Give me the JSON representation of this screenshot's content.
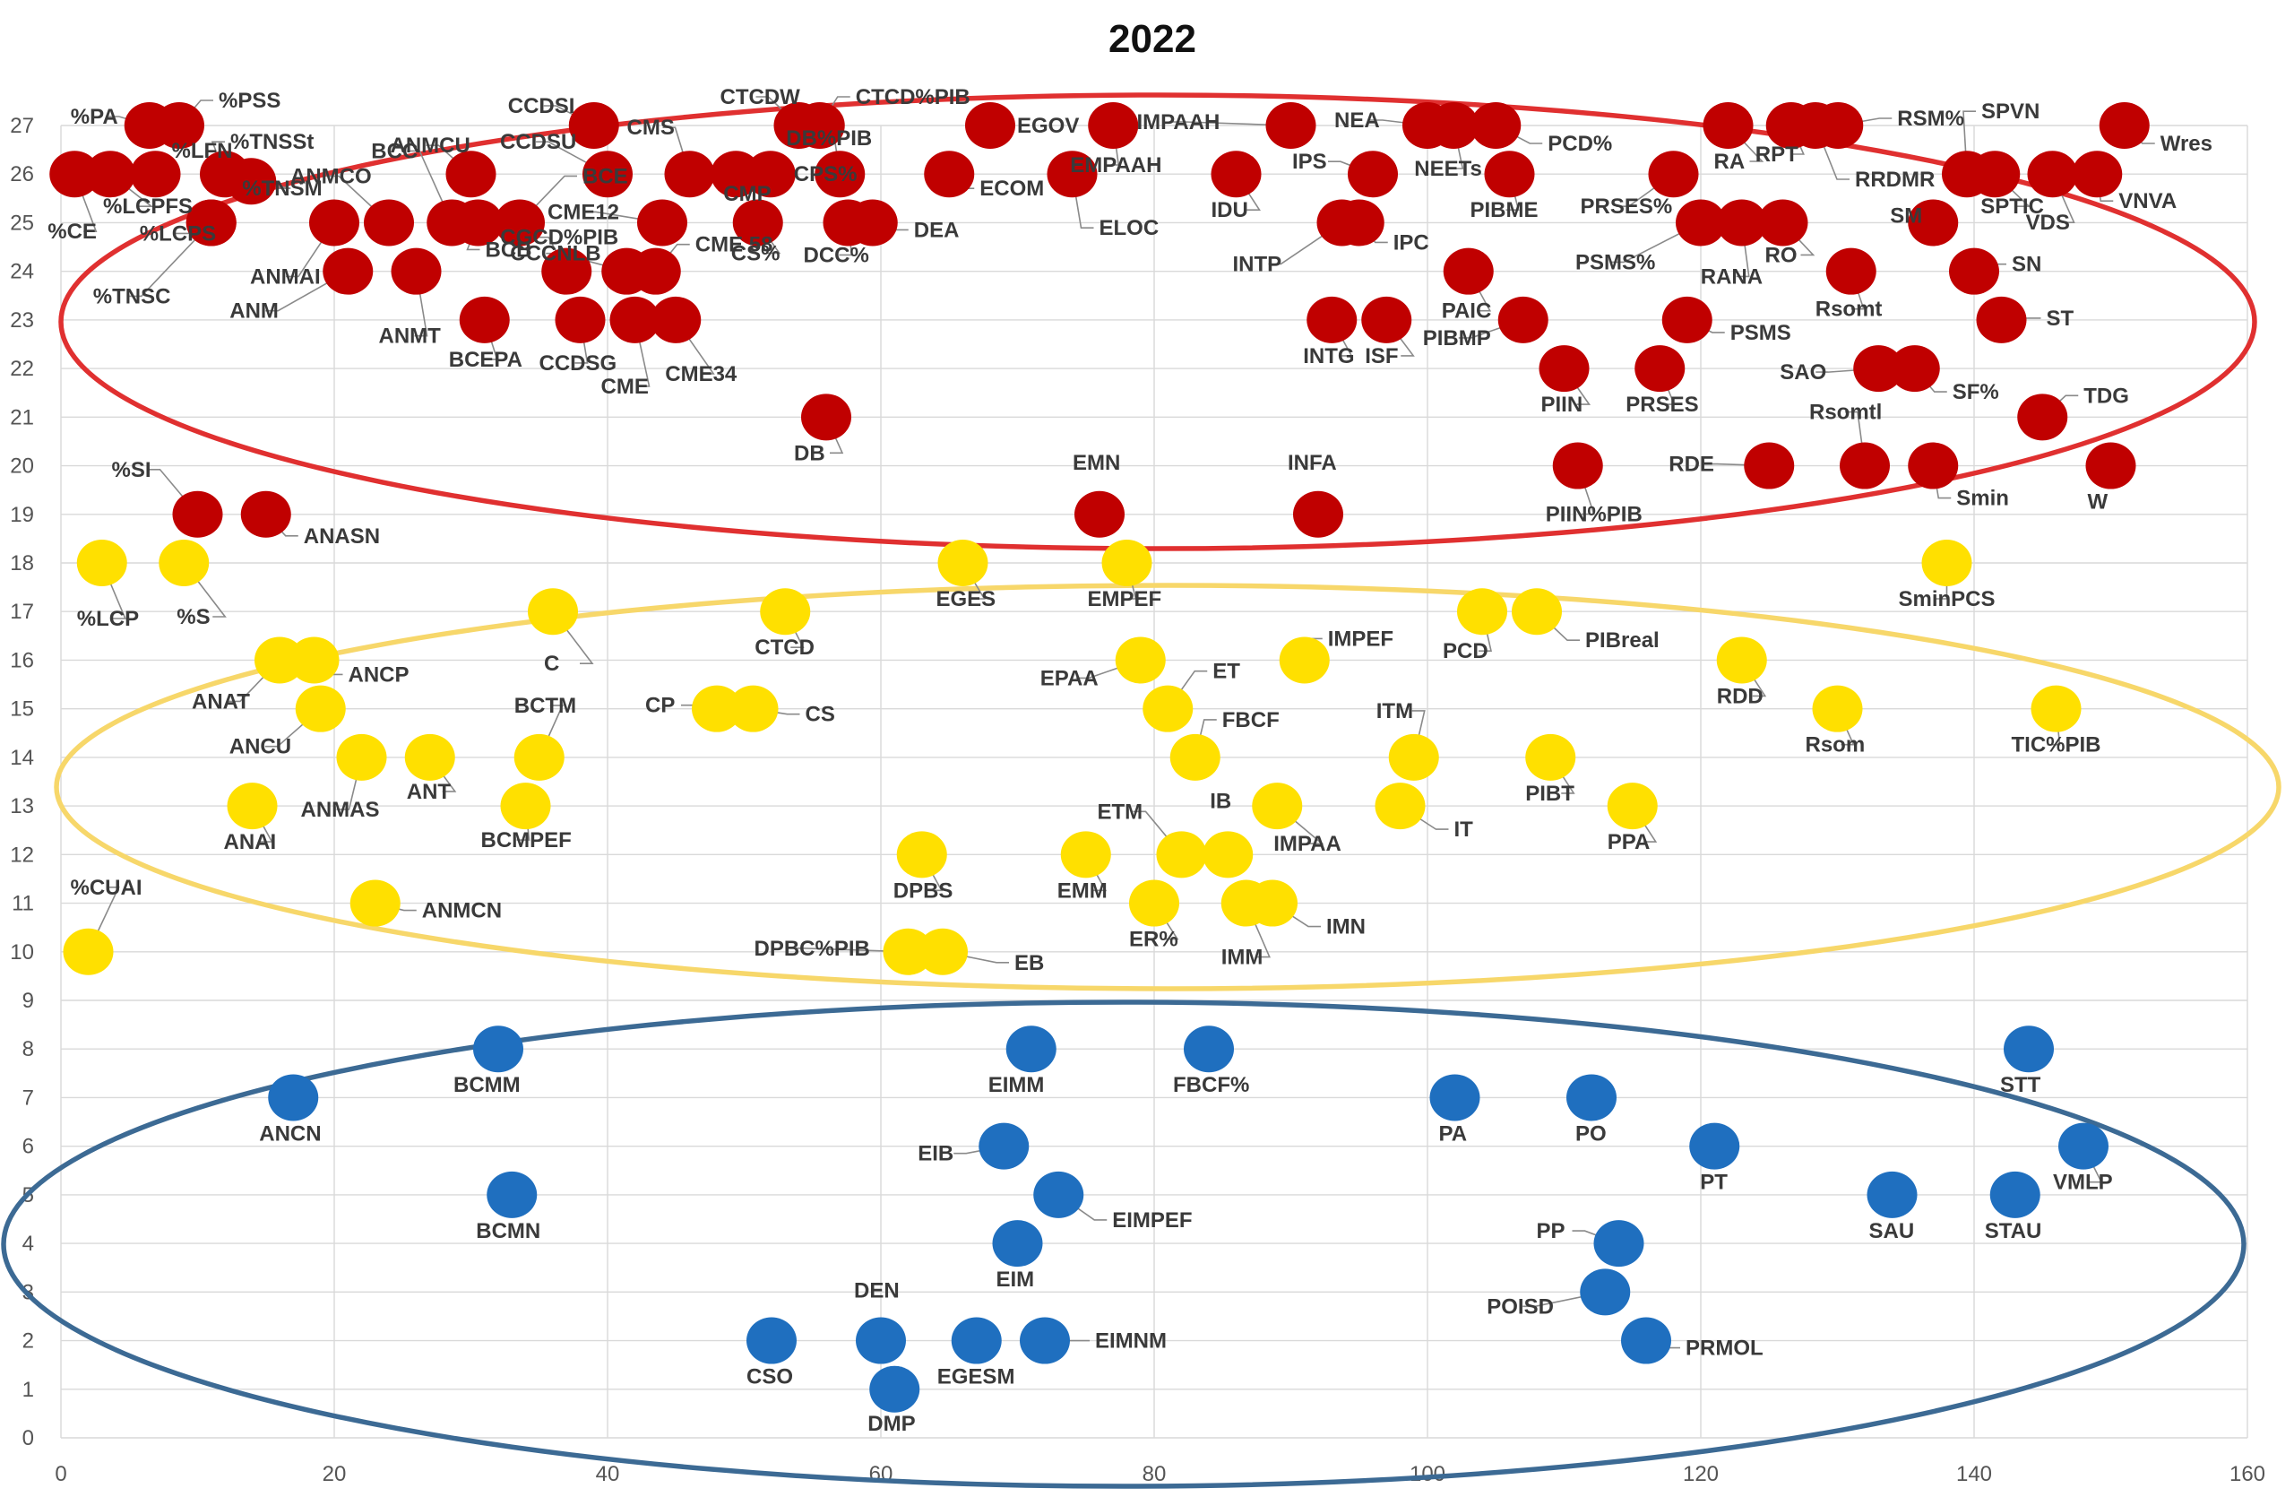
{
  "chart_data": {
    "type": "scatter",
    "title": "2022",
    "xlim": [
      0,
      160
    ],
    "ylim": [
      0,
      27
    ],
    "x_ticks": [
      "0",
      "20",
      "40",
      "60",
      "80",
      "100",
      "120",
      "140",
      "160"
    ],
    "y_ticks": [
      "0",
      "1",
      "2",
      "3",
      "4",
      "5",
      "6",
      "7",
      "8",
      "9",
      "10",
      "11",
      "12",
      "13",
      "14",
      "15",
      "16",
      "17",
      "18",
      "19",
      "20",
      "21",
      "22",
      "23",
      "24",
      "25",
      "26",
      "27"
    ],
    "grid": true,
    "legend": "none",
    "colors": {
      "red": "#c00000",
      "yellow": "#ffe000",
      "blue": "#1f6fbf",
      "red_ellipse": "#e03030",
      "yellow_ellipse": "#f7d76a",
      "blue_ellipse": "#3c6a94"
    },
    "groups": [
      {
        "color": "red",
        "points": [
          {
            "label": "%PA",
            "x": 7,
            "y": 27
          },
          {
            "label": "%PSS",
            "x": 8,
            "y": 27
          },
          {
            "label": "%LFN",
            "x": 6,
            "y": 26
          },
          {
            "label": "%LCPFS",
            "x": 4,
            "y": 26
          },
          {
            "label": "%CE",
            "x": 1,
            "y": 26
          },
          {
            "label": "%TNSSt",
            "x": 12,
            "y": 26
          },
          {
            "label": "%LCPS",
            "x": 11,
            "y": 25
          },
          {
            "label": "%TNSM",
            "x": 13,
            "y": 26
          },
          {
            "label": "%TNSC",
            "x": 11,
            "y": 25
          },
          {
            "label": "ANMCU",
            "x": 30,
            "y": 26
          },
          {
            "label": "ANMCO",
            "x": 24,
            "y": 25
          },
          {
            "label": "ANM",
            "x": 21,
            "y": 24
          },
          {
            "label": "ANMAI",
            "x": 20,
            "y": 25
          },
          {
            "label": "ANMT",
            "x": 26,
            "y": 24
          },
          {
            "label": "BCC",
            "x": 29,
            "y": 25
          },
          {
            "label": "BCB",
            "x": 30,
            "y": 25
          },
          {
            "label": "BCEPA",
            "x": 31,
            "y": 23
          },
          {
            "label": "BCE",
            "x": 32,
            "y": 25
          },
          {
            "label": "CCDSI",
            "x": 39,
            "y": 27
          },
          {
            "label": "CCDSU",
            "x": 40,
            "y": 26
          },
          {
            "label": "CGCD%PIB",
            "x": 37,
            "y": 24
          },
          {
            "label": "CCCNLB",
            "x": 41,
            "y": 24
          },
          {
            "label": "CCDSG",
            "x": 38,
            "y": 23
          },
          {
            "label": "CME",
            "x": 42,
            "y": 23
          },
          {
            "label": "CME12",
            "x": 44,
            "y": 25
          },
          {
            "label": "CMS",
            "x": 46,
            "y": 26
          },
          {
            "label": "CMP",
            "x": 49,
            "y": 26
          },
          {
            "label": "CPS%",
            "x": 51,
            "y": 26
          },
          {
            "label": "CME 58",
            "x": 43,
            "y": 24
          },
          {
            "label": "CME34",
            "x": 45,
            "y": 23
          },
          {
            "label": "CS%",
            "x": 51,
            "y": 25
          },
          {
            "label": "CTCDW",
            "x": 54,
            "y": 27
          },
          {
            "label": "CTCD%PIB",
            "x": 55,
            "y": 27
          },
          {
            "label": "DB%PIB",
            "x": 57,
            "y": 26
          },
          {
            "label": "DCC%",
            "x": 58,
            "y": 25
          },
          {
            "label": "DEA",
            "x": 59,
            "y": 25
          },
          {
            "label": "DB",
            "x": 56,
            "y": 21
          },
          {
            "label": "EGOV",
            "x": 68,
            "y": 27
          },
          {
            "label": "ECOM",
            "x": 65,
            "y": 26
          },
          {
            "label": "EMPAAH",
            "x": 77,
            "y": 27
          },
          {
            "label": "ELOC",
            "x": 74,
            "y": 26
          },
          {
            "label": "EMN",
            "x": 76,
            "y": 19
          },
          {
            "label": "IMPAAH",
            "x": 90,
            "y": 27
          },
          {
            "label": "IDU",
            "x": 86,
            "y": 26
          },
          {
            "label": "IPS",
            "x": 96,
            "y": 26
          },
          {
            "label": "INTP",
            "x": 94,
            "y": 25
          },
          {
            "label": "IPC",
            "x": 95,
            "y": 25
          },
          {
            "label": "INTG",
            "x": 93,
            "y": 23
          },
          {
            "label": "ISF",
            "x": 97,
            "y": 23
          },
          {
            "label": "INFA",
            "x": 92,
            "y": 19
          },
          {
            "label": "NEA",
            "x": 100,
            "y": 27
          },
          {
            "label": "NEETs",
            "x": 101,
            "y": 27
          },
          {
            "label": "PCD%",
            "x": 105,
            "y": 27
          },
          {
            "label": "PIBME",
            "x": 106,
            "y": 26
          },
          {
            "label": "PAIC",
            "x": 103,
            "y": 24
          },
          {
            "label": "PIBMP",
            "x": 107,
            "y": 23
          },
          {
            "label": "PIIN",
            "x": 110,
            "y": 22
          },
          {
            "label": "PIIN%PIB",
            "x": 111,
            "y": 20
          },
          {
            "label": "PRSES%",
            "x": 118,
            "y": 26
          },
          {
            "label": "PSMS%",
            "x": 120,
            "y": 25
          },
          {
            "label": "RANA",
            "x": 123,
            "y": 25
          },
          {
            "label": "RO",
            "x": 126,
            "y": 25
          },
          {
            "label": "PSMS",
            "x": 119,
            "y": 23
          },
          {
            "label": "PRSES",
            "x": 117,
            "y": 22
          },
          {
            "label": "RA",
            "x": 122,
            "y": 27
          },
          {
            "label": "RPT",
            "x": 127,
            "y": 27
          },
          {
            "label": "RSM%",
            "x": 129,
            "y": 27
          },
          {
            "label": "RRDMR",
            "x": 128,
            "y": 27
          },
          {
            "label": "Rsomt",
            "x": 131,
            "y": 24
          },
          {
            "label": "SAO",
            "x": 133,
            "y": 22
          },
          {
            "label": "SF%",
            "x": 135,
            "y": 22
          },
          {
            "label": "RDE",
            "x": 125,
            "y": 20
          },
          {
            "label": "Rsomtl",
            "x": 132,
            "y": 20
          },
          {
            "label": "Smin",
            "x": 137,
            "y": 20
          },
          {
            "label": "SPVN",
            "x": 140,
            "y": 26
          },
          {
            "label": "SPTIC",
            "x": 141,
            "y": 26
          },
          {
            "label": "SM",
            "x": 137,
            "y": 25
          },
          {
            "label": "SN",
            "x": 140,
            "y": 24
          },
          {
            "label": "ST",
            "x": 142,
            "y": 23
          },
          {
            "label": "TDG",
            "x": 145,
            "y": 21
          },
          {
            "label": "VDS",
            "x": 146,
            "y": 26
          },
          {
            "label": "VNVA",
            "x": 149,
            "y": 26
          },
          {
            "label": "Wres",
            "x": 151,
            "y": 27
          },
          {
            "label": "W",
            "x": 150,
            "y": 20
          },
          {
            "label": "%SI",
            "x": 10,
            "y": 19
          },
          {
            "label": "ANASN",
            "x": 15,
            "y": 19
          }
        ]
      },
      {
        "color": "yellow",
        "points": [
          {
            "label": "%LCP",
            "x": 3,
            "y": 18
          },
          {
            "label": "%S",
            "x": 9,
            "y": 18
          },
          {
            "label": "%CUAI",
            "x": 2,
            "y": 10
          },
          {
            "label": "ANAT",
            "x": 16,
            "y": 16
          },
          {
            "label": "ANCP",
            "x": 18,
            "y": 16
          },
          {
            "label": "ANCU",
            "x": 19,
            "y": 15
          },
          {
            "label": "ANMAS",
            "x": 22,
            "y": 14
          },
          {
            "label": "ANT",
            "x": 27,
            "y": 14
          },
          {
            "label": "ANAI",
            "x": 14,
            "y": 13
          },
          {
            "label": "ANMCN",
            "x": 23,
            "y": 11
          },
          {
            "label": "BCTM",
            "x": 35,
            "y": 14
          },
          {
            "label": "BCMPEF",
            "x": 34,
            "y": 13
          },
          {
            "label": "C",
            "x": 36,
            "y": 17
          },
          {
            "label": "CP",
            "x": 48,
            "y": 15
          },
          {
            "label": "CS",
            "x": 50,
            "y": 15
          },
          {
            "label": "CTCD",
            "x": 53,
            "y": 17
          },
          {
            "label": "DPBS",
            "x": 63,
            "y": 12
          },
          {
            "label": "DPBC%PIB",
            "x": 62,
            "y": 10
          },
          {
            "label": "EB",
            "x": 64,
            "y": 10
          },
          {
            "label": "EGES",
            "x": 66,
            "y": 18
          },
          {
            "label": "EMPEF",
            "x": 78,
            "y": 18
          },
          {
            "label": "EPAA",
            "x": 79,
            "y": 16
          },
          {
            "label": "ET",
            "x": 81,
            "y": 15
          },
          {
            "label": "FBCF",
            "x": 83,
            "y": 14
          },
          {
            "label": "EMM",
            "x": 75,
            "y": 12
          },
          {
            "label": "ETM",
            "x": 82,
            "y": 12
          },
          {
            "label": "IB",
            "x": 85,
            "y": 12
          },
          {
            "label": "ER%",
            "x": 80,
            "y": 11
          },
          {
            "label": "IMM",
            "x": 87,
            "y": 11
          },
          {
            "label": "IMN",
            "x": 88,
            "y": 11
          },
          {
            "label": "IMPEF",
            "x": 91,
            "y": 16
          },
          {
            "label": "IMPAA",
            "x": 89,
            "y": 13
          },
          {
            "label": "ITM",
            "x": 99,
            "y": 14
          },
          {
            "label": "IT",
            "x": 98,
            "y": 13
          },
          {
            "label": "PCD",
            "x": 104,
            "y": 17
          },
          {
            "label": "PIBreal",
            "x": 108,
            "y": 17
          },
          {
            "label": "PIBT",
            "x": 109,
            "y": 14
          },
          {
            "label": "PPA",
            "x": 115,
            "y": 13
          },
          {
            "label": "RDD",
            "x": 123,
            "y": 16
          },
          {
            "label": "Rsom",
            "x": 130,
            "y": 15
          },
          {
            "label": "SminPCS",
            "x": 138,
            "y": 18
          },
          {
            "label": "TIC%PIB",
            "x": 146,
            "y": 15
          }
        ]
      },
      {
        "color": "blue",
        "points": [
          {
            "label": "ANCN",
            "x": 17,
            "y": 7
          },
          {
            "label": "BCMM",
            "x": 32,
            "y": 8
          },
          {
            "label": "BCMN",
            "x": 33,
            "y": 5
          },
          {
            "label": "CSO",
            "x": 52,
            "y": 2
          },
          {
            "label": "DEN",
            "x": 60,
            "y": 2
          },
          {
            "label": "DMP",
            "x": 61,
            "y": 1
          },
          {
            "label": "EGESM",
            "x": 67,
            "y": 2
          },
          {
            "label": "EIMNM",
            "x": 72,
            "y": 2
          },
          {
            "label": "EIM",
            "x": 70,
            "y": 4
          },
          {
            "label": "EIB",
            "x": 69,
            "y": 6
          },
          {
            "label": "EIMPEF",
            "x": 73,
            "y": 5
          },
          {
            "label": "EIMM",
            "x": 71,
            "y": 8
          },
          {
            "label": "FBCF%",
            "x": 84,
            "y": 8
          },
          {
            "label": "PA",
            "x": 102,
            "y": 7
          },
          {
            "label": "PO",
            "x": 112,
            "y": 7
          },
          {
            "label": "PT",
            "x": 121,
            "y": 6
          },
          {
            "label": "PP",
            "x": 114,
            "y": 4
          },
          {
            "label": "POISD",
            "x": 113,
            "y": 3
          },
          {
            "label": "PRMOL",
            "x": 116,
            "y": 2
          },
          {
            "label": "SAU",
            "x": 134,
            "y": 5
          },
          {
            "label": "STAU",
            "x": 143,
            "y": 5
          },
          {
            "label": "STT",
            "x": 144,
            "y": 8
          },
          {
            "label": "VMLP",
            "x": 148,
            "y": 6
          }
        ]
      }
    ]
  }
}
